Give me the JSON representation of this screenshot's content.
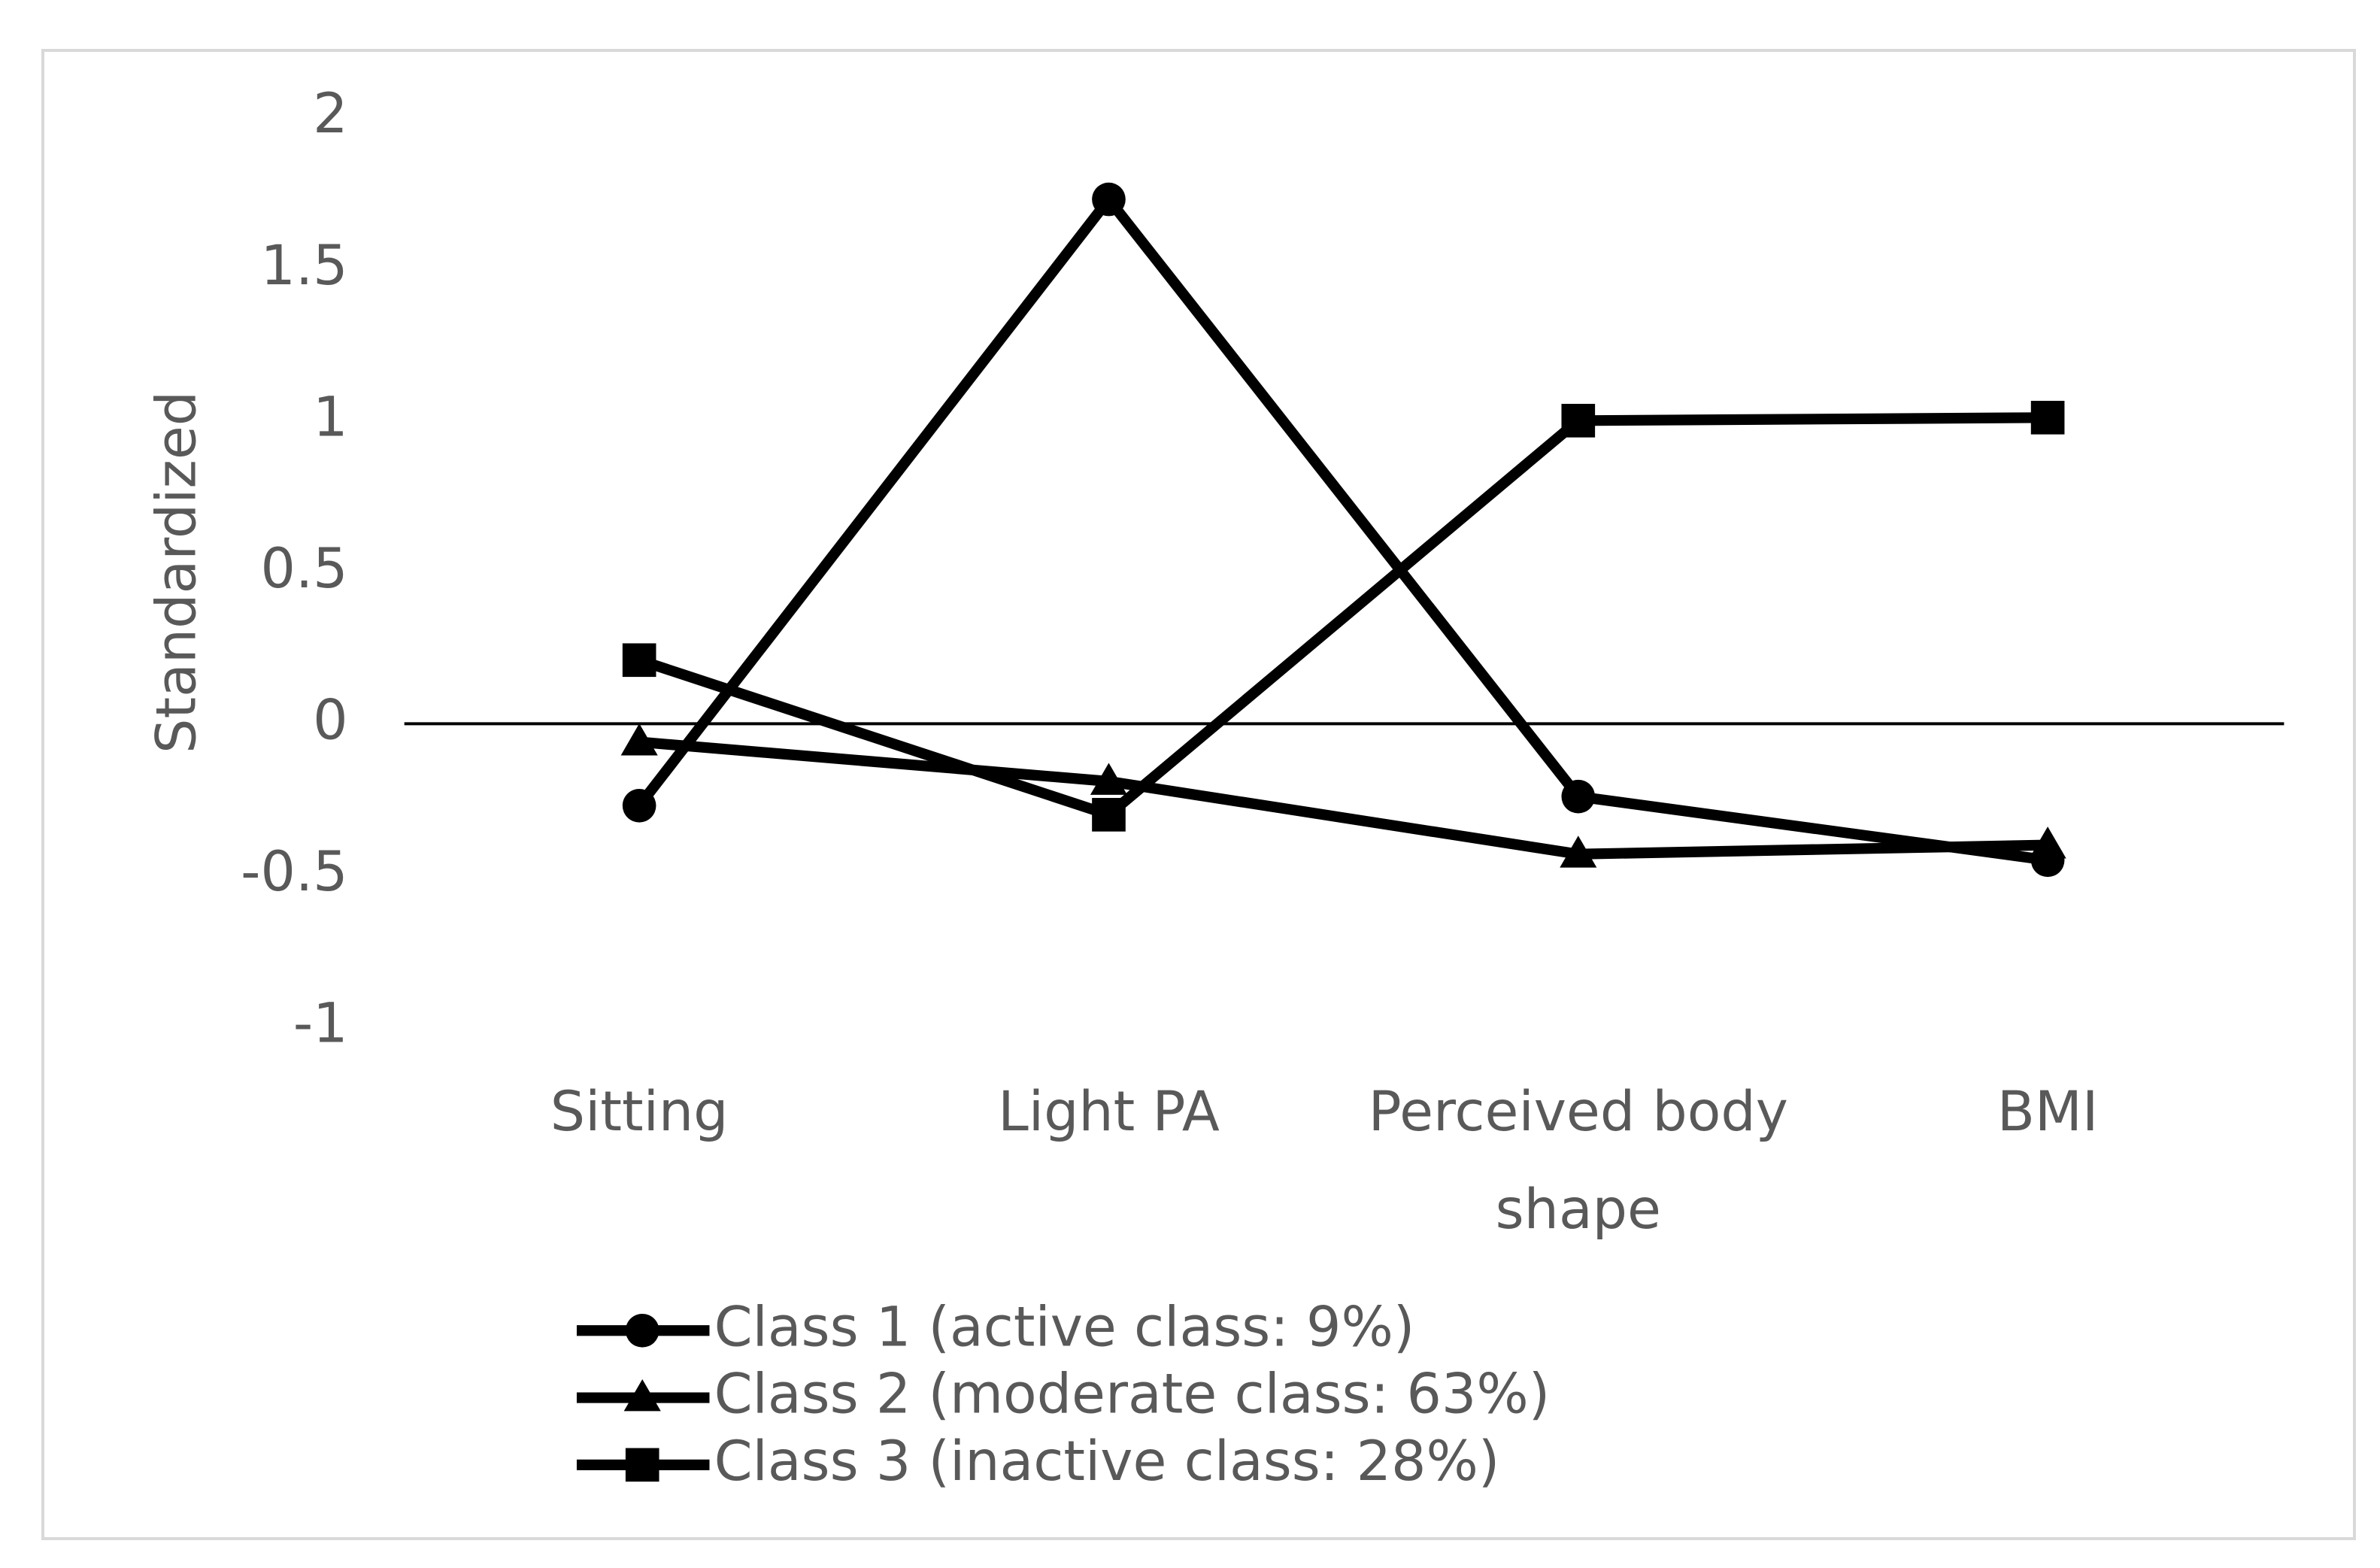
{
  "chart_data": {
    "type": "line",
    "ylabel": "Standardized",
    "categories": [
      "Sitting",
      "Light PA",
      "Perceived body shape",
      "BMI"
    ],
    "series": [
      {
        "name": "Class 1 (active class: 9%)",
        "color": "#000000",
        "marker": "circle",
        "values": [
          -0.27,
          1.73,
          -0.24,
          -0.45
        ]
      },
      {
        "name": "Class 2 (moderate class: 63%)",
        "color": "#000000",
        "marker": "triangle",
        "values": [
          -0.06,
          -0.19,
          -0.43,
          -0.4
        ]
      },
      {
        "name": "Class 3 (inactive class: 28%)",
        "color": "#000000",
        "marker": "square",
        "values": [
          0.21,
          -0.3,
          1.0,
          1.01
        ]
      }
    ],
    "ylim": [
      -1,
      2
    ],
    "yticks": [
      -1,
      -0.5,
      0,
      0.5,
      1,
      1.5,
      2
    ],
    "grid": false,
    "legend": "bottom"
  }
}
